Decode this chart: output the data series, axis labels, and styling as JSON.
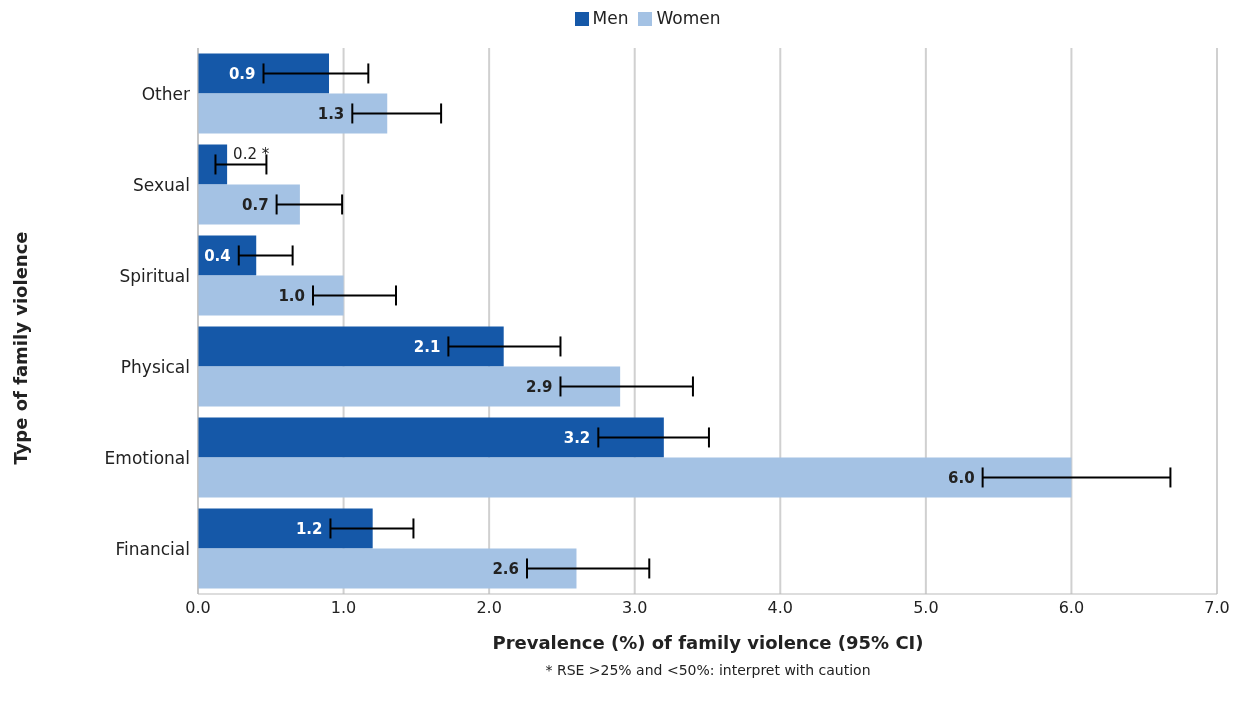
{
  "chart_data": {
    "type": "bar",
    "orientation": "horizontal",
    "xlabel": "Prevalence (%) of family violence (95% CI)",
    "ylabel": "Type of family violence",
    "categories": [
      "Other",
      "Sexual",
      "Spiritual",
      "Physical",
      "Emotional",
      "Financial"
    ],
    "series": [
      {
        "name": "Men",
        "color": "#1558a8",
        "values": [
          0.9,
          0.2,
          0.4,
          2.1,
          3.2,
          1.2
        ],
        "value_labels": [
          "0.9",
          "0.2 *",
          "0.4",
          "2.1",
          "3.2",
          "1.2"
        ],
        "errors": [
          [
            0.45,
            1.17
          ],
          [
            0.12,
            0.47
          ],
          [
            0.28,
            0.65
          ],
          [
            1.72,
            2.49
          ],
          [
            2.75,
            3.51
          ],
          [
            0.91,
            1.48
          ]
        ]
      },
      {
        "name": "Women",
        "color": "#a4c2e4",
        "values": [
          1.3,
          0.7,
          1.0,
          2.9,
          6.0,
          2.6
        ],
        "value_labels": [
          "1.3",
          "0.7",
          "1.0",
          "2.9",
          "6.0",
          "2.6"
        ],
        "errors": [
          [
            1.06,
            1.67
          ],
          [
            0.54,
            0.99
          ],
          [
            0.79,
            1.36
          ],
          [
            2.49,
            3.4
          ],
          [
            5.39,
            6.68
          ],
          [
            2.26,
            3.1
          ]
        ]
      }
    ],
    "xlim": [
      0,
      7
    ],
    "xticks": [
      {
        "value": 0,
        "label": "0.0"
      },
      {
        "value": 1,
        "label": "1.0"
      },
      {
        "value": 2,
        "label": "2.0"
      },
      {
        "value": 3,
        "label": "3.0"
      },
      {
        "value": 4,
        "label": "4.0"
      },
      {
        "value": 5,
        "label": "5.0"
      },
      {
        "value": 6,
        "label": "6.0"
      },
      {
        "value": 7,
        "label": "7.0"
      }
    ],
    "grid": "x",
    "legend": "top",
    "annotations": [
      "* RSE >25% and <50%: interpret with caution"
    ]
  }
}
